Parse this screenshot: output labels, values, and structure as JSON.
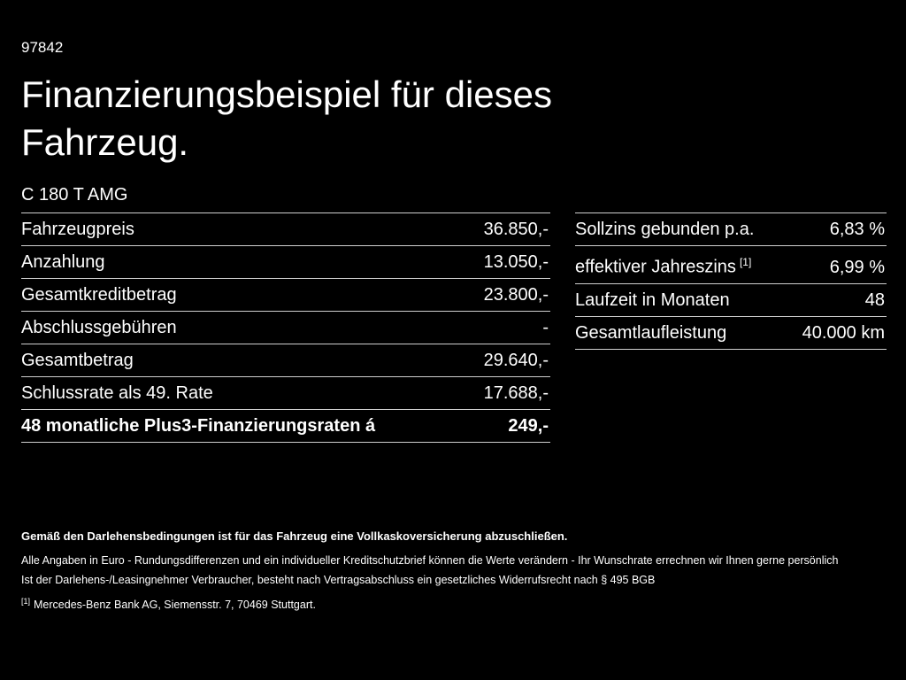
{
  "page": {
    "id": "97842",
    "title": "Finanzierungsbeispiel für dieses Fahrzeug.",
    "model": "C 180 T AMG"
  },
  "left_table": {
    "rows": [
      {
        "label": "Fahrzeugpreis",
        "value": "36.850,-"
      },
      {
        "label": "Anzahlung",
        "value": "13.050,-"
      },
      {
        "label": "Gesamtkreditbetrag",
        "value": "23.800,-"
      },
      {
        "label": "Abschlussgebühren",
        "value": "-"
      },
      {
        "label": "Gesamtbetrag",
        "value": "29.640,-"
      },
      {
        "label": "Schlussrate als 49. Rate",
        "value": "17.688,-"
      },
      {
        "label": "48 monatliche Plus3-Finanzierungsraten á",
        "value": "249,-",
        "bold": true
      }
    ]
  },
  "right_table": {
    "rows": [
      {
        "label": "Sollzins gebunden p.a.",
        "value": "6,83 %"
      },
      {
        "label": "effektiver Jahreszins",
        "sup": "[1]",
        "value": "6,99 %"
      },
      {
        "label": "Laufzeit in Monaten",
        "value": "48"
      },
      {
        "label": "Gesamtlaufleistung",
        "value": "40.000 km"
      }
    ]
  },
  "footnotes": {
    "bold": "Gemäß den Darlehensbedingungen ist für das Fahrzeug eine Vollkaskoversicherung abzuschließen.",
    "line1": "Alle Angaben in Euro - Rundungsdifferenzen und ein individueller Kreditschutzbrief können die Werte verändern - Ihr Wunschrate errechnen wir Ihnen gerne persönlich",
    "line2": "Ist der Darlehens-/Leasingnehmer Verbraucher, besteht nach Vertragsabschluss ein gesetzliches Widerrufsrecht nach § 495 BGB",
    "ref_marker": "[1]",
    "ref_text": "Mercedes-Benz Bank AG, Siemensstr. 7, 70469 Stuttgart."
  },
  "colors": {
    "background": "#000000",
    "text": "#ffffff",
    "divider": "#cfcfcf"
  }
}
